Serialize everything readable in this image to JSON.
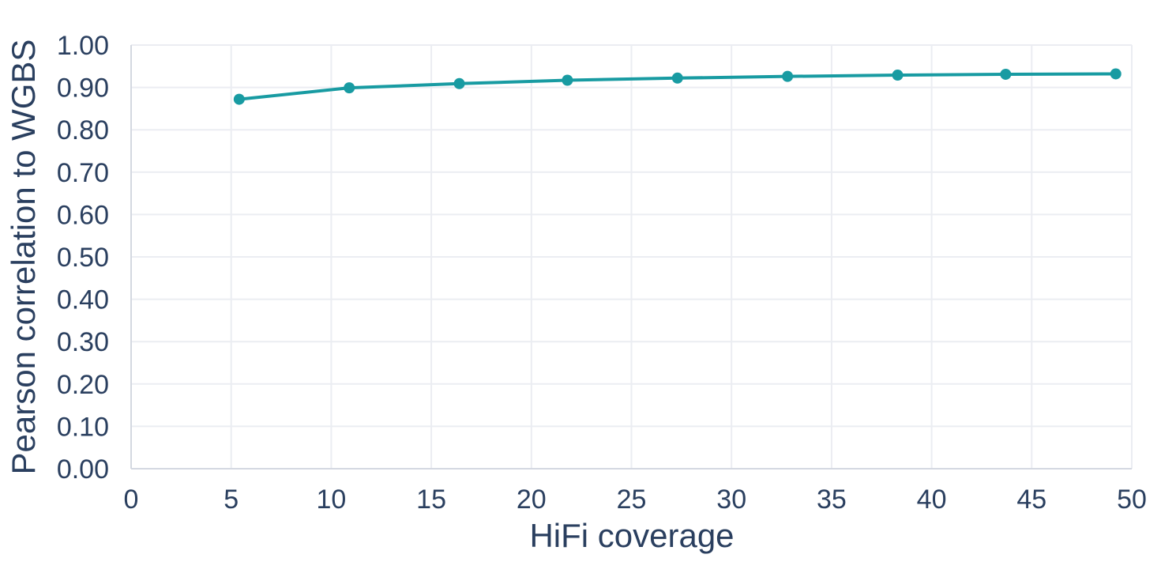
{
  "chart_data": {
    "type": "line",
    "title": "",
    "xlabel": "HiFi coverage",
    "ylabel": "Pearson correlation to WGBS",
    "xlim": [
      0,
      50
    ],
    "ylim": [
      0.0,
      1.0
    ],
    "x_ticks": [
      0,
      5,
      10,
      15,
      20,
      25,
      30,
      35,
      40,
      45,
      50
    ],
    "y_ticks": [
      "0.00",
      "0.10",
      "0.20",
      "0.30",
      "0.40",
      "0.50",
      "0.60",
      "0.70",
      "0.80",
      "0.90",
      "1.00"
    ],
    "grid": true,
    "legend": "none",
    "series": [
      {
        "name": "Pearson correlation to WGBS vs HiFi coverage",
        "marker": "circle",
        "x": [
          5.4,
          10.9,
          16.4,
          21.8,
          27.3,
          32.8,
          38.3,
          43.7,
          49.2
        ],
        "y": [
          0.872,
          0.899,
          0.909,
          0.917,
          0.922,
          0.926,
          0.929,
          0.931,
          0.932
        ]
      }
    ],
    "colors": {
      "line": "#189ba2",
      "marker": "#189ba2",
      "text": "#2a3f5f",
      "grid": "#ebedf2",
      "axis_line": "#d4d8e1",
      "background": "#ffffff"
    }
  }
}
